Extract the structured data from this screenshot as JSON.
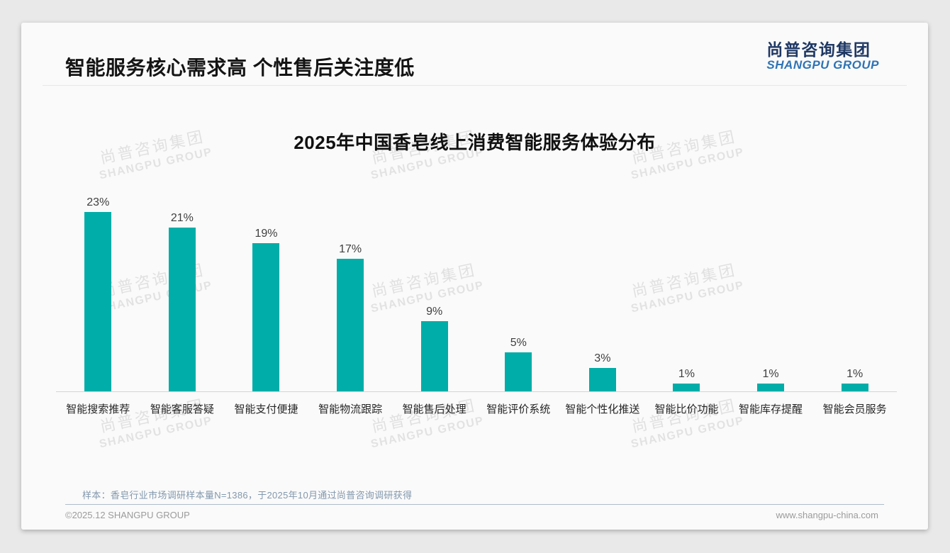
{
  "header": {
    "title": "智能服务核心需求高 个性售后关注度低",
    "logo_cn": "尚普咨询集团",
    "logo_en": "SHANGPU GROUP"
  },
  "watermark": {
    "line1": "尚普咨询集团",
    "line2": "SHANGPU GROUP"
  },
  "chart_data": {
    "type": "bar",
    "title": "2025年中国香皂线上消费智能服务体验分布",
    "categories": [
      "智能搜索推荐",
      "智能客服答疑",
      "智能支付便捷",
      "智能物流跟踪",
      "智能售后处理",
      "智能评价系统",
      "智能个性化推送",
      "智能比价功能",
      "智能库存提醒",
      "智能会员服务"
    ],
    "values": [
      23,
      21,
      19,
      17,
      9,
      5,
      3,
      1,
      1,
      1
    ],
    "value_labels": [
      "23%",
      "21%",
      "19%",
      "17%",
      "9%",
      "5%",
      "3%",
      "1%",
      "1%",
      "1%"
    ],
    "unit": "%",
    "bar_color": "#00ada8",
    "ylim": [
      0,
      25
    ],
    "grid": false,
    "legend": false,
    "xlabel": "",
    "ylabel": ""
  },
  "footnote": "样本：香皂行业市场调研样本量N=1386，于2025年10月通过尚普咨询调研获得",
  "footer": {
    "left": "©2025.12 SHANGPU GROUP",
    "right": "www.shangpu-china.com"
  },
  "colors": {
    "bar": "#00ada8",
    "logo_cn": "#1f3864",
    "logo_en": "#2e74b5",
    "footnote": "#8398ad",
    "axis_line": "#d5d5d5"
  }
}
